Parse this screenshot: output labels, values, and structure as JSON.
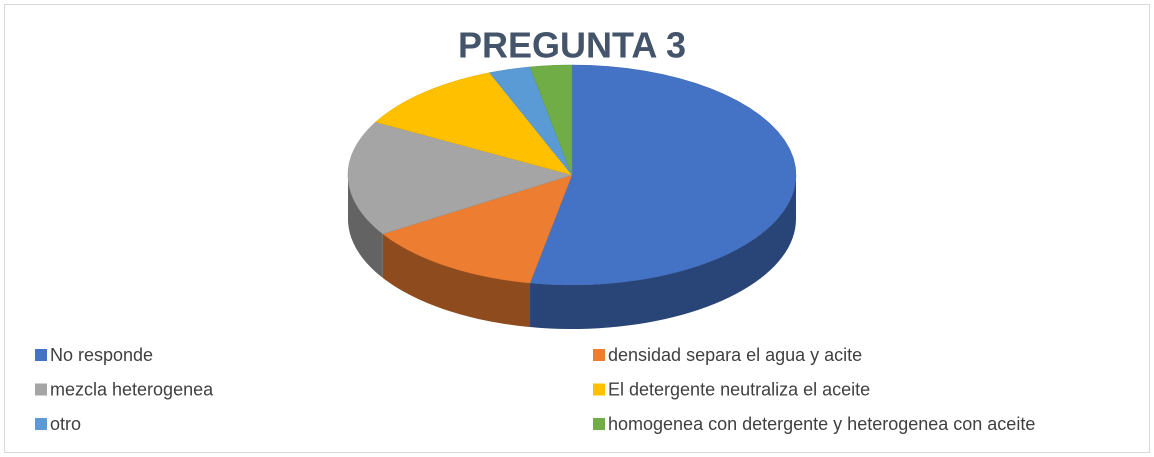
{
  "chart_data": {
    "type": "pie3d",
    "title": "PREGUNTA 3",
    "categories": [
      "No responde",
      "densidad separa el agua y acite",
      "mezcla heterogenea",
      "El detergente neutraliza el aceite",
      "otro",
      "homogenea con detergente y heterogenea con aceite"
    ],
    "values": [
      53,
      13,
      17,
      11,
      3,
      3
    ],
    "colors": [
      "#4472c4",
      "#ed7d31",
      "#a5a5a5",
      "#ffc000",
      "#5b9bd5",
      "#70ad47"
    ],
    "legend": "bottom"
  }
}
